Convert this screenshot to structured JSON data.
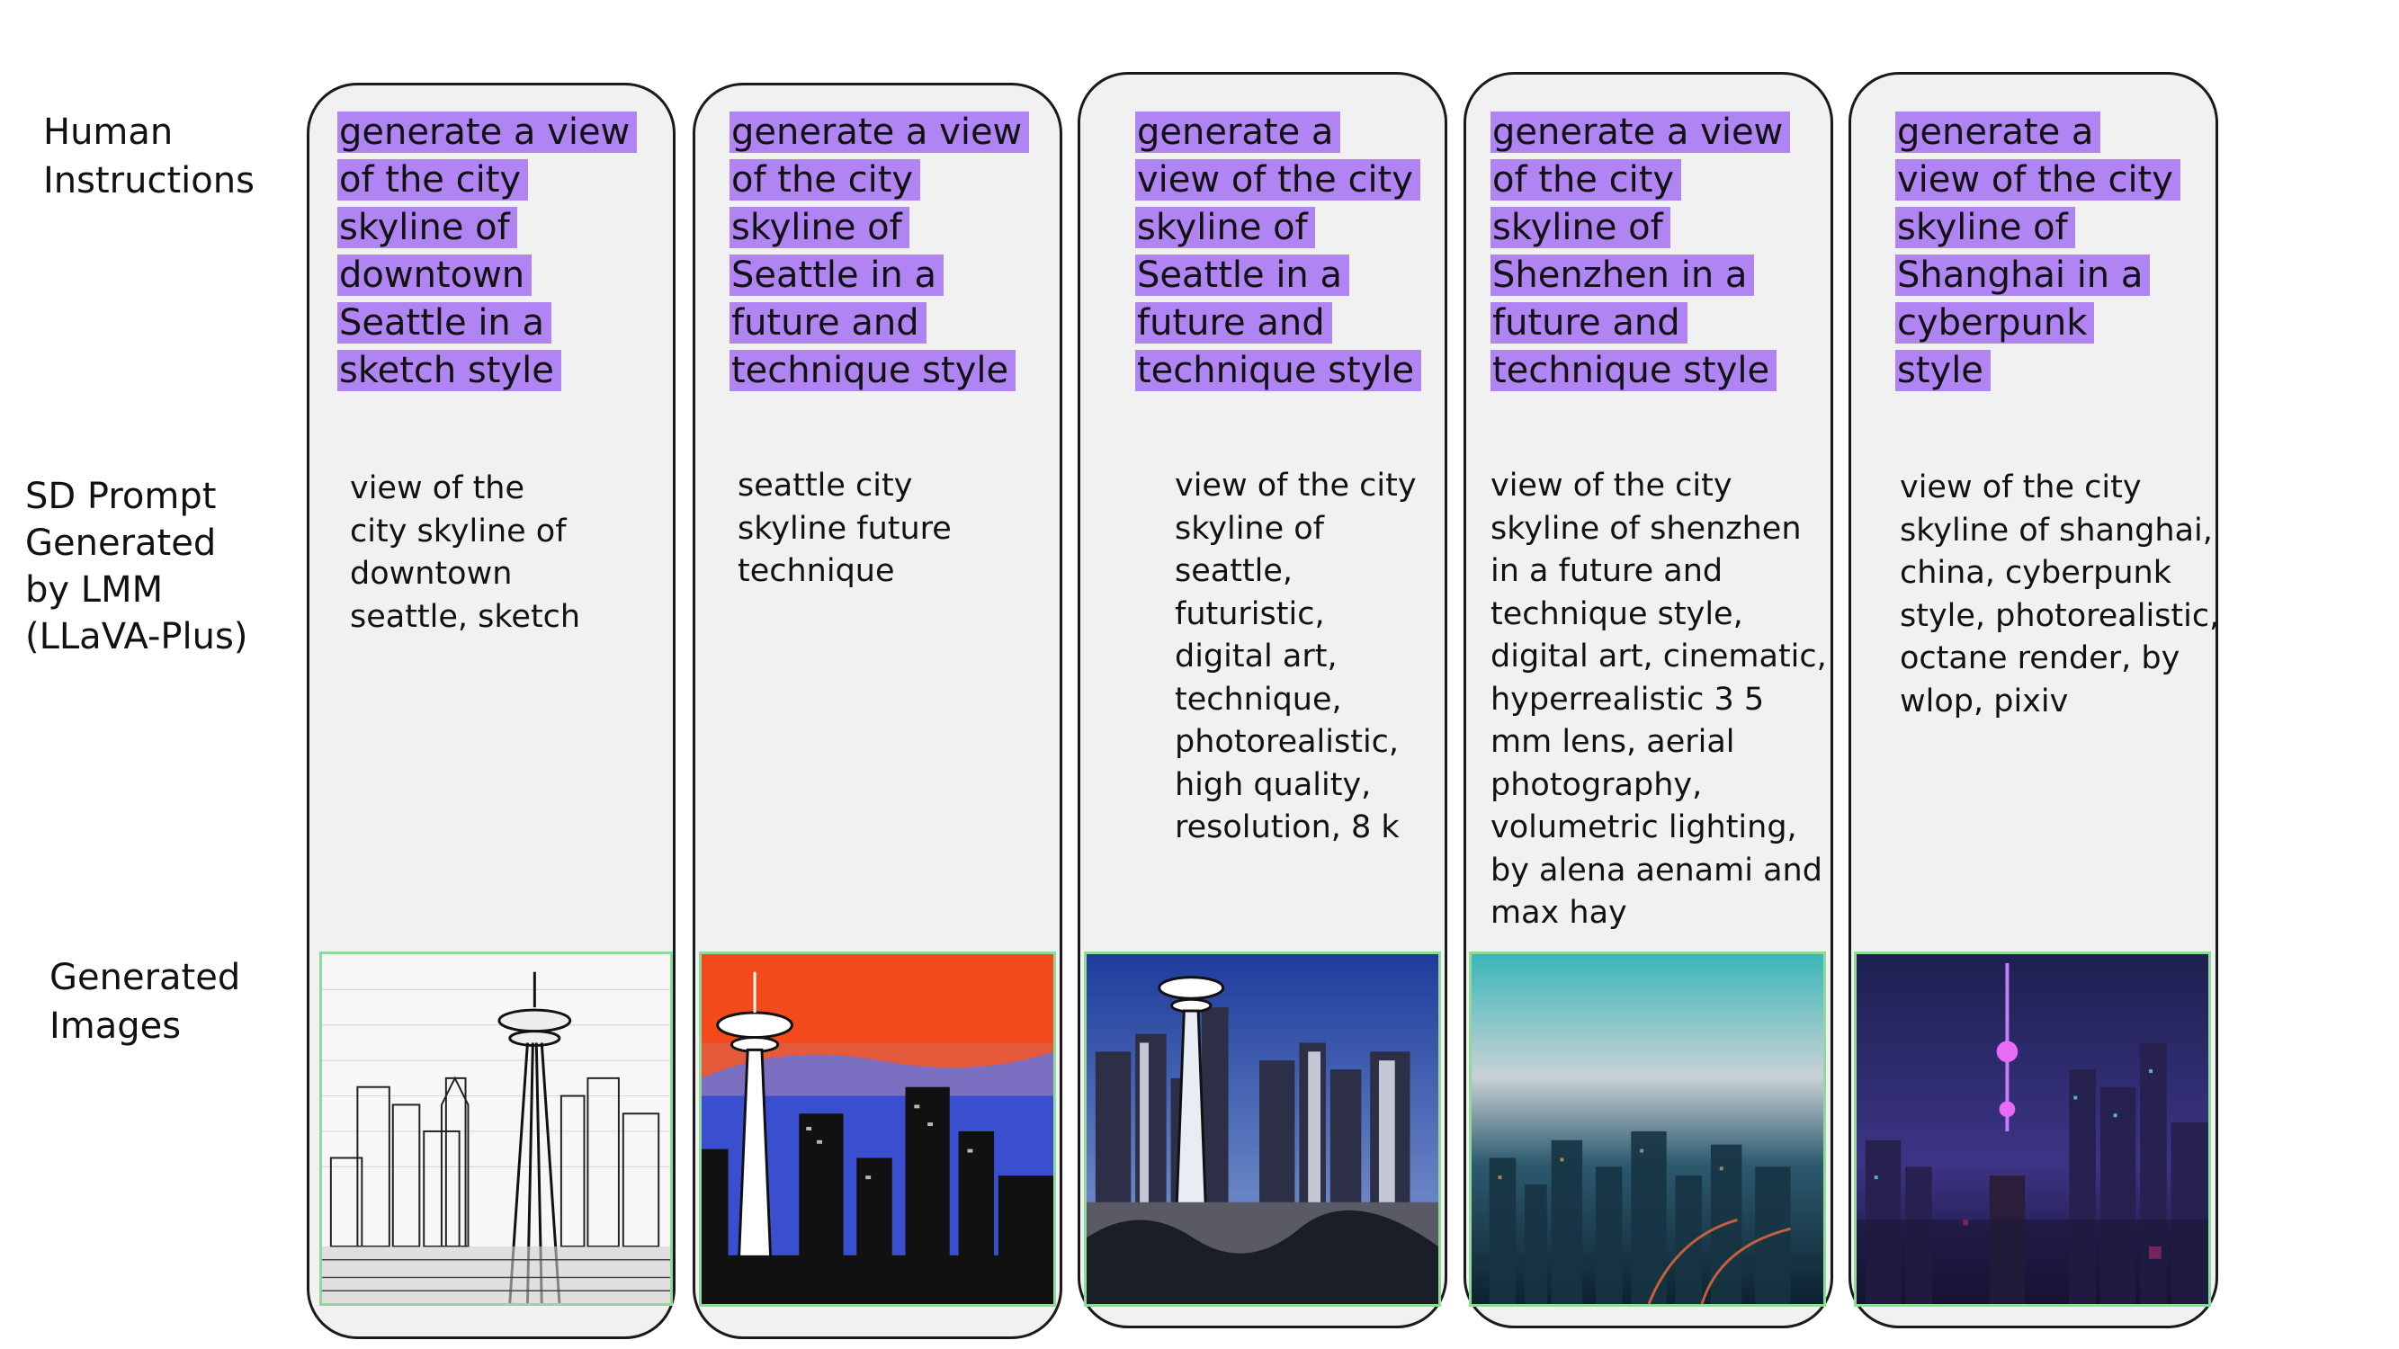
{
  "row_labels": {
    "human": "Human\nInstructions",
    "sd": "SD Prompt\nGenerated\nby LMM\n(LLaVA-Plus)",
    "images": "Generated\nImages"
  },
  "columns": [
    {
      "instruction_lines": [
        "generate a view",
        "of the city",
        "skyline of",
        "downtown",
        "Seattle in a",
        "sketch style"
      ],
      "prompt": "view of the\ncity skyline of\ndowntown\nseattle, sketch",
      "image_icon": "seattle-sketch-image"
    },
    {
      "instruction_lines": [
        "generate a view",
        "of the city",
        "skyline of",
        "Seattle in a",
        "future and",
        "technique style"
      ],
      "prompt": "seattle city\nskyline future\ntechnique",
      "image_icon": "seattle-sunset-image"
    },
    {
      "instruction_lines": [
        "generate a",
        "view of the city",
        "skyline of",
        "Seattle in a",
        "future and",
        "technique style"
      ],
      "prompt": "view of the city\nskyline of\nseattle,\nfuturistic,\ndigital art,\ntechnique,\nphotorealistic,\nhigh quality,\nresolution, 8 k",
      "image_icon": "seattle-dusk-image"
    },
    {
      "instruction_lines": [
        "generate a view",
        "of the city",
        "skyline of",
        "Shenzhen in a",
        "future and",
        "technique style"
      ],
      "prompt": "view of the city\nskyline of shenzhen\nin a future and\ntechnique style,\ndigital art, cinematic,\nhyperrealistic 3 5\nmm lens, aerial\nphotography,\nvolumetric lighting,\nby alena aenami and\nmax hay",
      "image_icon": "shenzhen-aerial-image"
    },
    {
      "instruction_lines": [
        "generate a",
        "view of the city",
        "skyline of",
        "Shanghai in a",
        "cyberpunk",
        "style"
      ],
      "prompt": "view of the city\nskyline of shanghai,\nchina, cyberpunk\nstyle, photorealistic,\noctane render, by\nwlop, pixiv",
      "image_icon": "shanghai-cyberpunk-image"
    }
  ],
  "colors": {
    "highlight": "#b085f3",
    "card_bg": "#f1f1f2",
    "image_border": "#8fd99a"
  }
}
